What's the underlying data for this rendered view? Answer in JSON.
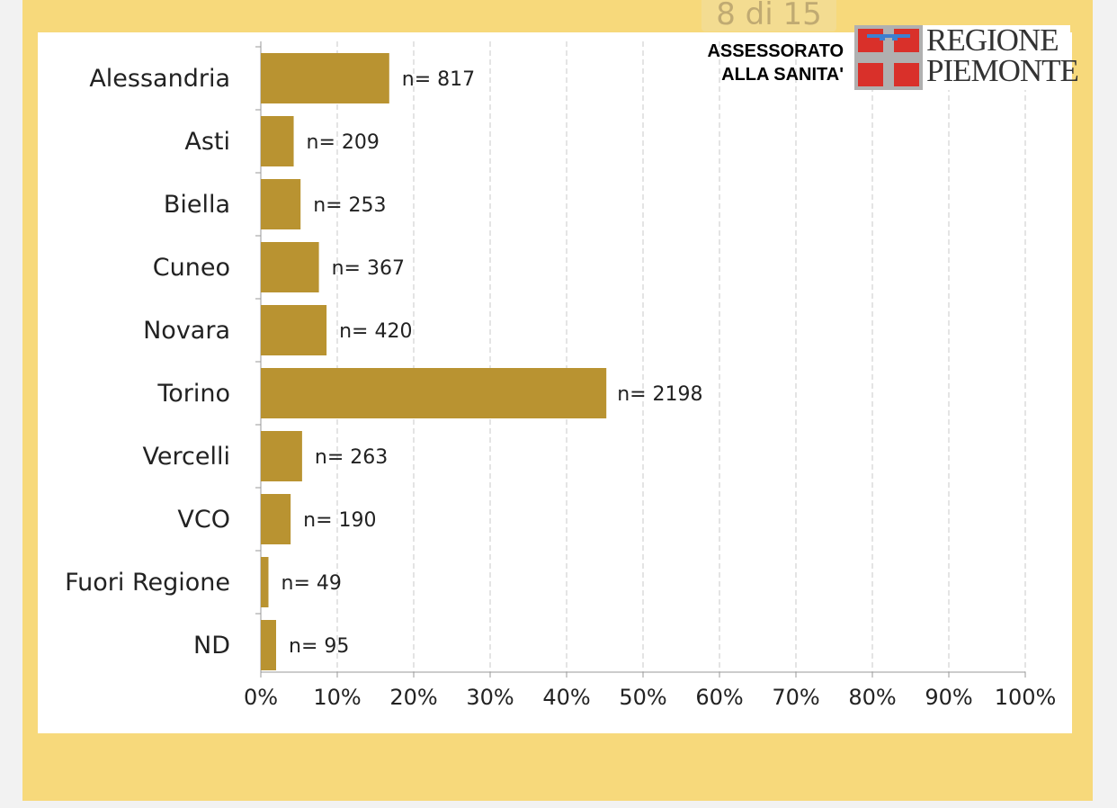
{
  "page_indicator": "8 di 15",
  "header": {
    "assessorato_line1": "ASSESSORATO",
    "assessorato_line2": "ALLA SANITA'",
    "logo_line1": "REGIONE",
    "logo_line2": "PIEMONTE"
  },
  "colors": {
    "bar": "#b99331",
    "page_bg": "#f7d97b"
  },
  "chart_data": {
    "type": "bar",
    "orientation": "horizontal",
    "categories": [
      "Alessandria",
      "Asti",
      "Biella",
      "Cuneo",
      "Novara",
      "Torino",
      "Vercelli",
      "VCO",
      "Fuori Regione",
      "ND"
    ],
    "values": [
      16.8,
      4.3,
      5.2,
      7.6,
      8.6,
      45.2,
      5.4,
      3.9,
      1.0,
      2.0
    ],
    "labels": [
      "n= 817",
      "n= 209",
      "n= 253",
      "n= 367",
      "n= 420",
      "n= 2198",
      "n= 263",
      "n= 190",
      "n= 49",
      "n= 95"
    ],
    "xlim": [
      0,
      100
    ],
    "xticks": [
      "0%",
      "10%",
      "20%",
      "30%",
      "40%",
      "50%",
      "60%",
      "70%",
      "80%",
      "90%",
      "100%"
    ],
    "grid": "vertical dashed",
    "title": "",
    "xlabel": "",
    "ylabel": ""
  }
}
